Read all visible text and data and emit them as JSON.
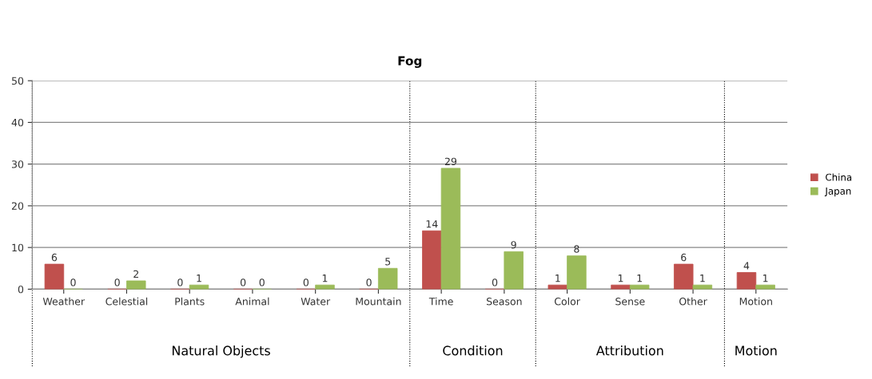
{
  "chart_data": {
    "type": "bar",
    "title": "Fog",
    "categories": [
      "Weather",
      "Celestial",
      "Plants",
      "Animal",
      "Water",
      "Mountain",
      "Time",
      "Season",
      "Color",
      "Sense",
      "Other",
      "Motion"
    ],
    "series": [
      {
        "name": "China",
        "color": "#c0504d",
        "values": [
          6,
          0,
          0,
          0,
          0,
          0,
          14,
          0,
          1,
          1,
          6,
          4
        ]
      },
      {
        "name": "Japan",
        "color": "#9bbb59",
        "values": [
          0,
          2,
          1,
          0,
          1,
          5,
          29,
          9,
          8,
          1,
          1,
          1
        ]
      }
    ],
    "ylim": [
      0,
      50
    ],
    "yticks": [
      0,
      10,
      20,
      30,
      40,
      50
    ],
    "grid": "y",
    "legend": "right",
    "data_labels": true,
    "annotations": [
      "Natural Objects",
      "Condition",
      "Attribution",
      "Motion"
    ]
  }
}
